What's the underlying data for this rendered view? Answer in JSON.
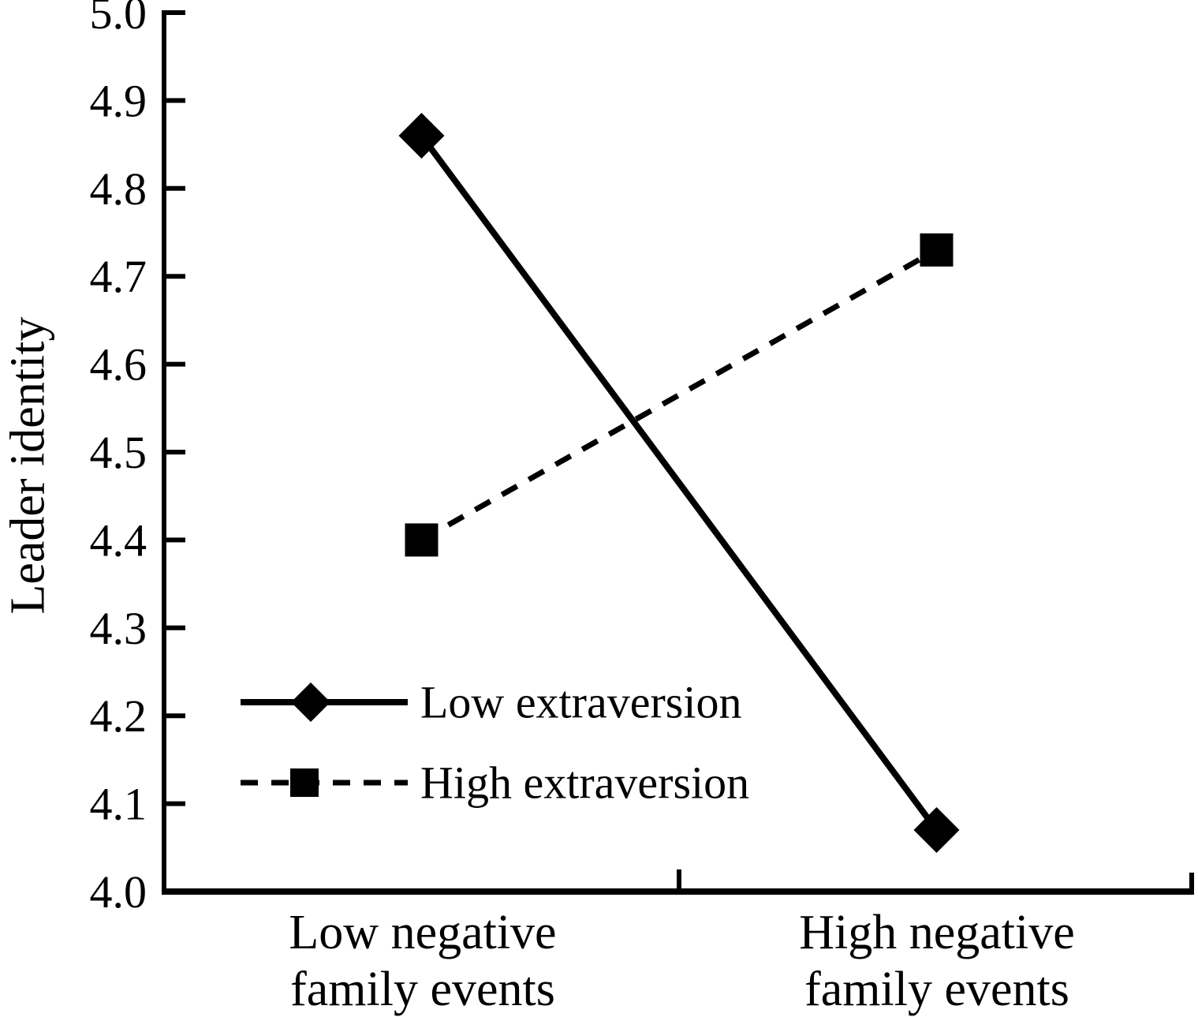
{
  "chart_data": {
    "type": "line",
    "title": "",
    "xlabel": "",
    "ylabel": "Leader identity",
    "ylim": [
      4.0,
      5.0
    ],
    "ytick_step": 0.1,
    "ytick_labels": [
      "4.0",
      "4.1",
      "4.2",
      "4.3",
      "4.4",
      "4.5",
      "4.6",
      "4.7",
      "4.8",
      "4.9",
      "5.0"
    ],
    "categories": [
      "Low negative family events",
      "High negative family events"
    ],
    "category_lines": [
      [
        "Low negative",
        "family events"
      ],
      [
        "High negative",
        "family events"
      ]
    ],
    "series": [
      {
        "name": "Low extraversion",
        "marker": "diamond",
        "line_style": "solid",
        "values": [
          4.86,
          4.07
        ]
      },
      {
        "name": "High extraversion",
        "marker": "square",
        "line_style": "dashed",
        "values": [
          4.4,
          4.73
        ]
      }
    ],
    "legend_position": "inside-lower-left",
    "grid": false,
    "colors": {
      "foreground": "#000000",
      "background": "#ffffff"
    }
  }
}
